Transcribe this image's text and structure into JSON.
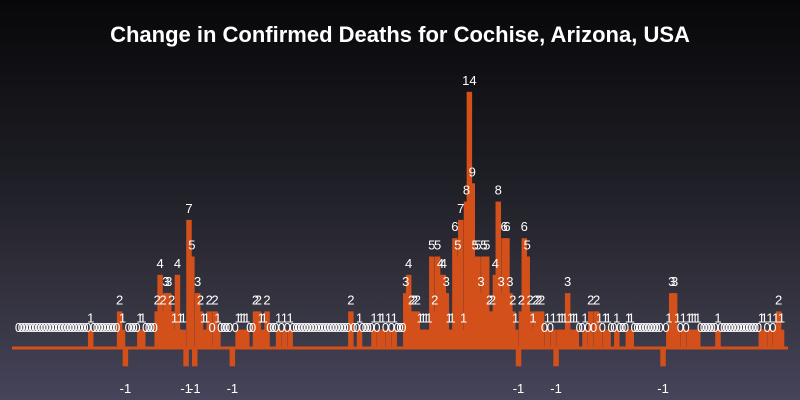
{
  "chart_data": {
    "type": "bar",
    "title": "Change in Confirmed Deaths for Cochise, Arizona, USA",
    "xlabel": "",
    "ylabel": "",
    "ylim": [
      -2,
      15
    ],
    "grid": false,
    "bar_color": "#d4501a",
    "label_color": "#ffffff",
    "values": [
      0,
      0,
      0,
      0,
      0,
      0,
      0,
      0,
      0,
      0,
      0,
      0,
      0,
      0,
      0,
      0,
      0,
      0,
      0,
      0,
      0,
      0,
      0,
      0,
      0,
      1,
      0,
      0,
      0,
      0,
      0,
      0,
      0,
      0,
      0,
      2,
      1,
      -1,
      0,
      0,
      0,
      0,
      1,
      1,
      0,
      0,
      0,
      0,
      2,
      4,
      2,
      3,
      3,
      2,
      1,
      4,
      1,
      1,
      -1,
      7,
      5,
      -1,
      3,
      2,
      1,
      1,
      2,
      0,
      2,
      1,
      0,
      0,
      0,
      0,
      -1,
      0,
      1,
      1,
      1,
      1,
      0,
      0,
      2,
      2,
      1,
      1,
      2,
      0,
      0,
      0,
      1,
      0,
      1,
      0,
      1,
      0,
      0,
      0,
      0,
      0,
      0,
      0,
      0,
      0,
      0,
      0,
      0,
      0,
      0,
      0,
      0,
      0,
      0,
      0,
      0,
      2,
      0,
      0,
      1,
      0,
      0,
      0,
      0,
      1,
      0,
      1,
      1,
      0,
      1,
      0,
      1,
      0,
      0,
      0,
      3,
      4,
      2,
      2,
      2,
      1,
      1,
      1,
      1,
      5,
      2,
      5,
      4,
      4,
      3,
      1,
      1,
      6,
      5,
      7,
      1,
      8,
      14,
      9,
      5,
      5,
      3,
      5,
      5,
      2,
      2,
      4,
      8,
      3,
      6,
      6,
      3,
      2,
      1,
      -1,
      2,
      6,
      5,
      2,
      1,
      2,
      2,
      2,
      0,
      1,
      0,
      1,
      -1,
      1,
      1,
      1,
      3,
      1,
      1,
      1,
      0,
      0,
      1,
      0,
      2,
      0,
      2,
      1,
      0,
      1,
      1,
      0,
      0,
      1,
      0,
      0,
      0,
      1,
      1,
      0,
      0,
      0,
      0,
      0,
      0,
      0,
      0,
      0,
      0,
      -1,
      0,
      1,
      3,
      3,
      1,
      0,
      1,
      0,
      1,
      1,
      1,
      1,
      0,
      0,
      0,
      0,
      0,
      0,
      1,
      0,
      0,
      0,
      0,
      0,
      0,
      0,
      0,
      0,
      0,
      0,
      0,
      0,
      0,
      1,
      1,
      0,
      1,
      0,
      1,
      2,
      1
    ]
  }
}
